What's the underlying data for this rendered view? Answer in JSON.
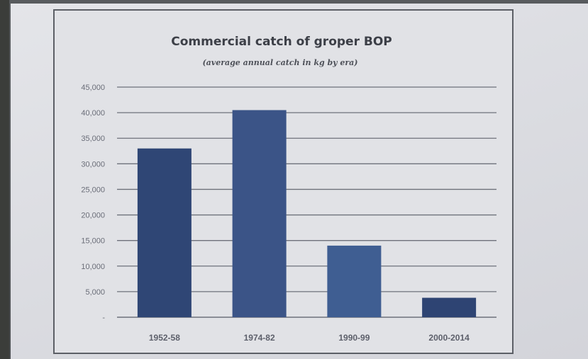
{
  "chart_data": {
    "type": "bar",
    "title": "Commercial catch of groper BOP",
    "subtitle": "(average annual catch in kg by era)",
    "categories": [
      "1952-58",
      "1974-82",
      "1990-99",
      "2000-2014"
    ],
    "values": [
      33000,
      40500,
      14000,
      3800
    ],
    "ylim": [
      0,
      45000
    ],
    "yticks": [
      0,
      5000,
      10000,
      15000,
      20000,
      25000,
      30000,
      35000,
      40000,
      45000
    ],
    "ytick_labels": [
      "-",
      "5,000",
      "10,000",
      "15,000",
      "20,000",
      "25,000",
      "30,000",
      "35,000",
      "40,000",
      "45,000"
    ],
    "grid": true,
    "legend": "none",
    "bar_colors": [
      "#2f4675",
      "#3b5487",
      "#3f5e92",
      "#2e4473"
    ]
  }
}
